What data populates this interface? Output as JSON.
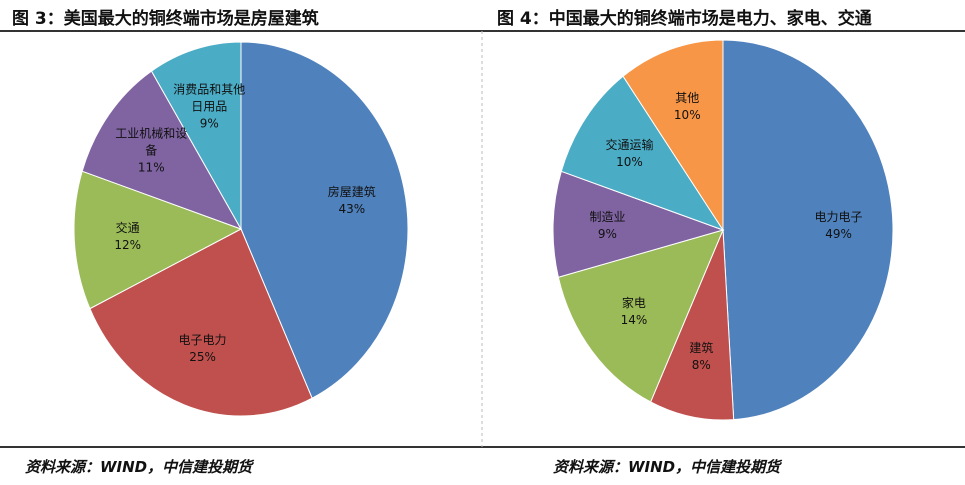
{
  "chart_data": [
    {
      "type": "pie",
      "title": "图 3：美国最大的铜终端市场是房屋建筑",
      "categories": [
        "房屋建筑",
        "电子电力",
        "交通",
        "工业机械和设备",
        "消费品和其他日用品"
      ],
      "values": [
        43,
        25,
        12,
        11,
        9
      ],
      "value_labels": [
        "43%",
        "25%",
        "12%",
        "11%",
        "9%"
      ],
      "colors": [
        "#4f81bd",
        "#c0504d",
        "#9bbb59",
        "#8064a2",
        "#4bacc6"
      ],
      "source": "资料来源：WIND，中信建投期货"
    },
    {
      "type": "pie",
      "title": "图 4：中国最大的铜终端市场是电力、家电、交通",
      "categories": [
        "电力电子",
        "建筑",
        "家电",
        "制造业",
        "交通运输",
        "其他"
      ],
      "values": [
        49,
        8,
        14,
        9,
        10,
        10
      ],
      "value_labels": [
        "49%",
        "8%",
        "14%",
        "9%",
        "10%",
        "10%"
      ],
      "colors": [
        "#4f81bd",
        "#c0504d",
        "#9bbb59",
        "#8064a2",
        "#4bacc6",
        "#f79646"
      ],
      "source": "资料来源：WIND，中信建投期货"
    }
  ]
}
